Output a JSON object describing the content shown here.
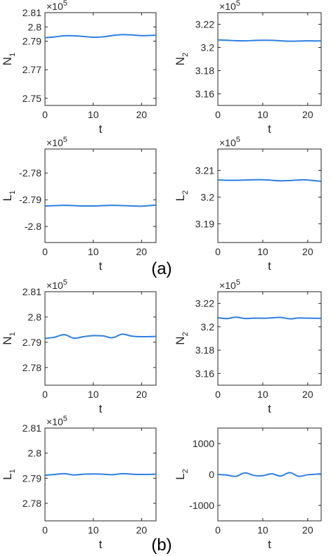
{
  "colors": {
    "line": "#2e7fe0",
    "axis": "#262626"
  },
  "panel_labels": [
    "(a)",
    "(b)"
  ],
  "chart_data": [
    {
      "type": "line",
      "panel": "(a)",
      "ylabel": "N",
      "ylabel_sub": "1",
      "xlabel": "t",
      "multiplier": "×10",
      "multiplier_exp": "5",
      "xlim": [
        0,
        23
      ],
      "ylim": [
        2.745,
        2.81
      ],
      "xticks": [
        0,
        10,
        20
      ],
      "xtick_labels": [
        "0",
        "10",
        "20"
      ],
      "yticks": [
        2.75,
        2.77,
        2.79,
        2.8,
        2.81
      ],
      "ytick_labels": [
        "2.75",
        "2.77",
        "2.79",
        "2.8",
        "2.81"
      ],
      "x": [
        0,
        2,
        4,
        6,
        8,
        10,
        12,
        14,
        16,
        18,
        20,
        23
      ],
      "y": [
        2.7924,
        2.793,
        2.7938,
        2.7938,
        2.7933,
        2.7928,
        2.7931,
        2.794,
        2.7946,
        2.7944,
        2.7939,
        2.7942
      ]
    },
    {
      "type": "line",
      "panel": "(a)",
      "ylabel": "N",
      "ylabel_sub": "2",
      "xlabel": "t",
      "multiplier": "×10",
      "multiplier_exp": "5",
      "xlim": [
        0,
        23
      ],
      "ylim": [
        3.15,
        3.23
      ],
      "xticks": [
        0,
        10,
        20
      ],
      "xtick_labels": [
        "0",
        "10",
        "20"
      ],
      "yticks": [
        3.16,
        3.18,
        3.2,
        3.22
      ],
      "ytick_labels": [
        "3.16",
        "3.18",
        "3.2",
        "3.22"
      ],
      "x": [
        0,
        2,
        4,
        6,
        8,
        10,
        12,
        14,
        16,
        18,
        20,
        23
      ],
      "y": [
        3.2065,
        3.2062,
        3.2058,
        3.2057,
        3.206,
        3.2062,
        3.2061,
        3.2057,
        3.2054,
        3.2055,
        3.2057,
        3.2056
      ]
    },
    {
      "type": "line",
      "panel": "(a)",
      "ylabel": "L",
      "ylabel_sub": "1",
      "xlabel": "t",
      "multiplier": "×10",
      "multiplier_exp": "5",
      "xlim": [
        0,
        23
      ],
      "ylim": [
        -2.806,
        -2.771
      ],
      "xticks": [
        0,
        10,
        20
      ],
      "xtick_labels": [
        "0",
        "10",
        "20"
      ],
      "yticks": [
        -2.8,
        -2.79,
        -2.78
      ],
      "ytick_labels": [
        "-2.8",
        "-2.79",
        "-2.78"
      ],
      "x": [
        0,
        2,
        4,
        6,
        8,
        10,
        12,
        14,
        16,
        18,
        20,
        23
      ],
      "y": [
        -2.7923,
        -2.7922,
        -2.7921,
        -2.7922,
        -2.7923,
        -2.7923,
        -2.7922,
        -2.7921,
        -2.7922,
        -2.7923,
        -2.7924,
        -2.792
      ]
    },
    {
      "type": "line",
      "panel": "(a)",
      "ylabel": "L",
      "ylabel_sub": "2",
      "xlabel": "t",
      "multiplier": "×10",
      "multiplier_exp": "5",
      "xlim": [
        0,
        23
      ],
      "ylim": [
        3.183,
        3.218
      ],
      "xticks": [
        0,
        10,
        20
      ],
      "xtick_labels": [
        "0",
        "10",
        "20"
      ],
      "yticks": [
        3.19,
        3.2,
        3.21
      ],
      "ytick_labels": [
        "3.19",
        "3.2",
        "3.21"
      ],
      "x": [
        0,
        2,
        4,
        6,
        8,
        10,
        12,
        14,
        16,
        18,
        20,
        23
      ],
      "y": [
        3.2064,
        3.2063,
        3.2063,
        3.2064,
        3.2065,
        3.2065,
        3.2063,
        3.2061,
        3.2062,
        3.2064,
        3.2064,
        3.2059
      ]
    },
    {
      "type": "line",
      "panel": "(b)",
      "ylabel": "N",
      "ylabel_sub": "1",
      "xlabel": "t",
      "multiplier": "×10",
      "multiplier_exp": "5",
      "xlim": [
        0,
        23
      ],
      "ylim": [
        2.773,
        2.81
      ],
      "xticks": [
        0,
        10,
        20
      ],
      "xtick_labels": [
        "0",
        "10",
        "20"
      ],
      "yticks": [
        2.78,
        2.79,
        2.8,
        2.81
      ],
      "ytick_labels": [
        "2.78",
        "2.79",
        "2.8",
        "2.81"
      ],
      "x": [
        0,
        2,
        4,
        6,
        8,
        10,
        12,
        14,
        16,
        18,
        20,
        23
      ],
      "y": [
        2.7915,
        2.792,
        2.793,
        2.7916,
        2.7922,
        2.7926,
        2.7925,
        2.7918,
        2.7932,
        2.7924,
        2.7922,
        2.7923
      ]
    },
    {
      "type": "line",
      "panel": "(b)",
      "ylabel": "N",
      "ylabel_sub": "2",
      "xlabel": "t",
      "multiplier": "×10",
      "multiplier_exp": "5",
      "xlim": [
        0,
        23
      ],
      "ylim": [
        3.15,
        3.23
      ],
      "xticks": [
        0,
        10,
        20
      ],
      "xtick_labels": [
        "0",
        "10",
        "20"
      ],
      "yticks": [
        3.16,
        3.18,
        3.2,
        3.22
      ],
      "ytick_labels": [
        "3.16",
        "3.18",
        "3.2",
        "3.22"
      ],
      "x": [
        0,
        2,
        4,
        6,
        8,
        10,
        12,
        14,
        16,
        18,
        20,
        23
      ],
      "y": [
        3.2078,
        3.207,
        3.2082,
        3.2071,
        3.2074,
        3.2073,
        3.2076,
        3.208,
        3.2068,
        3.2075,
        3.2074,
        3.2072
      ]
    },
    {
      "type": "line",
      "panel": "(b)",
      "ylabel": "L",
      "ylabel_sub": "1",
      "xlabel": "t",
      "multiplier": "×10",
      "multiplier_exp": "5",
      "xlim": [
        0,
        23
      ],
      "ylim": [
        2.773,
        2.81
      ],
      "xticks": [
        0,
        10,
        20
      ],
      "xtick_labels": [
        "0",
        "10",
        "20"
      ],
      "yticks": [
        2.78,
        2.79,
        2.8,
        2.81
      ],
      "ytick_labels": [
        "2.78",
        "2.79",
        "2.8",
        "2.81"
      ],
      "x": [
        0,
        2,
        4,
        6,
        8,
        10,
        12,
        14,
        16,
        18,
        20,
        23
      ],
      "y": [
        2.7912,
        2.7915,
        2.7918,
        2.7913,
        2.7916,
        2.7917,
        2.7916,
        2.7914,
        2.7918,
        2.7916,
        2.7915,
        2.7916
      ]
    },
    {
      "type": "line",
      "panel": "(b)",
      "ylabel": "L",
      "ylabel_sub": "2",
      "xlabel": "t",
      "multiplier": "",
      "multiplier_exp": "",
      "xlim": [
        0,
        23
      ],
      "ylim": [
        -1500,
        1500
      ],
      "xticks": [
        0,
        10,
        20
      ],
      "xtick_labels": [
        "0",
        "10",
        "20"
      ],
      "yticks": [
        -1000,
        0,
        1000
      ],
      "ytick_labels": [
        "-1000",
        "0",
        "1000"
      ],
      "x": [
        0,
        2,
        4,
        6,
        8,
        10,
        12,
        14,
        16,
        18,
        20,
        23
      ],
      "y": [
        0,
        -20,
        -60,
        50,
        -30,
        -40,
        20,
        -50,
        60,
        -60,
        -10,
        20
      ]
    }
  ]
}
